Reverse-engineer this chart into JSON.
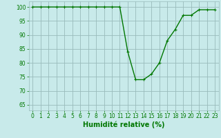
{
  "x": [
    0,
    1,
    2,
    3,
    4,
    5,
    6,
    7,
    8,
    9,
    10,
    11,
    12,
    13,
    14,
    15,
    16,
    17,
    18,
    19,
    20,
    21,
    22,
    23
  ],
  "y": [
    100,
    100,
    100,
    100,
    100,
    100,
    100,
    100,
    100,
    100,
    100,
    100,
    84,
    74,
    74,
    76,
    80,
    88,
    92,
    97,
    97,
    99,
    99,
    99
  ],
  "line_color": "#007700",
  "marker": "+",
  "marker_color": "#007700",
  "bg_color": "#c8eaea",
  "grid_color": "#99bbbb",
  "xlabel": "Humidité relative (%)",
  "xlabel_color": "#007700",
  "xlabel_fontsize": 7,
  "ylabel_ticks": [
    65,
    70,
    75,
    80,
    85,
    90,
    95,
    100
  ],
  "xlim": [
    -0.5,
    23.5
  ],
  "ylim": [
    63,
    102
  ],
  "tick_color": "#007700",
  "tick_fontsize": 5.5,
  "linewidth": 1.0,
  "markersize": 3.5,
  "marker_linewidth": 0.8
}
